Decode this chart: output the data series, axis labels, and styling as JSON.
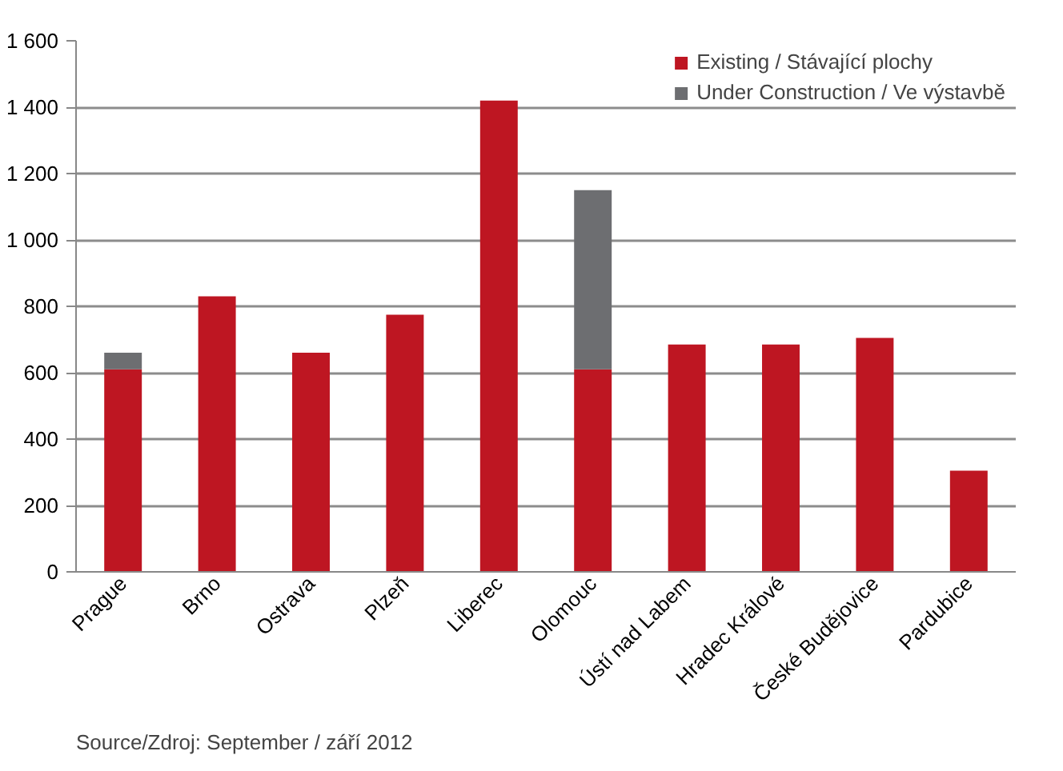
{
  "chart_data": {
    "type": "bar",
    "stacked": true,
    "categories": [
      "Prague",
      "Brno",
      "Ostrava",
      "Plzeň",
      "Liberec",
      "Olomouc",
      "Ústí nad Labem",
      "Hradec Králové",
      "České Budějovice",
      "Pardubice"
    ],
    "series": [
      {
        "name": "Existing / Stávající plochy",
        "color": "#be1622",
        "values": [
          610,
          830,
          660,
          775,
          1420,
          610,
          685,
          685,
          705,
          305
        ]
      },
      {
        "name": "Under Construction / Ve výstavbě",
        "color": "#6d6e71",
        "values": [
          50,
          null,
          null,
          null,
          null,
          540,
          null,
          null,
          null,
          null
        ]
      }
    ],
    "ylim": [
      0,
      1600
    ],
    "yticks": [
      0,
      200,
      400,
      600,
      800,
      {
        "value": 1000,
        "label": "1 000"
      },
      {
        "value": 1200,
        "label": "1 200"
      },
      {
        "value": 1400,
        "label": "1 400"
      },
      {
        "value": 1600,
        "label": "1 600"
      }
    ],
    "grid": "y",
    "legend": "top right",
    "annotations": [
      "Source/Zdroj: September / září 2012"
    ]
  }
}
